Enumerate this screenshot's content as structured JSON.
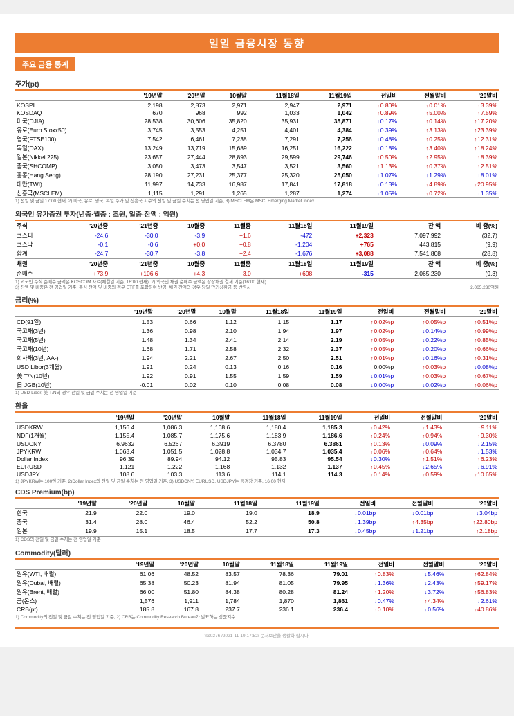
{
  "title": "일일 금융시장 동향",
  "subtitle": "주요 금융 통계",
  "footer": "fsc0276 /2021-11-19 17:52/ 문서보안을 생활화 합시다.",
  "balance_note": "2,065,230억원",
  "sections": [
    {
      "title": "주가(pt)",
      "headers": [
        "",
        "'19년말",
        "'20년말",
        "10월말",
        "11월18일",
        "11월19일",
        "전일비",
        "전월말비",
        "'20말비"
      ],
      "rows": [
        [
          "KOSPI",
          "2,198",
          "2,873",
          "2,971",
          "2,947",
          "2,971",
          "↑0.80%",
          "↑0.01%",
          "↑3.39%"
        ],
        [
          "KOSDAQ",
          "670",
          "968",
          "992",
          "1,033",
          "1,042",
          "↑0.89%",
          "↑5.00%",
          "↑7.59%"
        ],
        [
          "미국(DJIA)",
          "28,538",
          "30,606",
          "35,820",
          "35,931",
          "35,871",
          "↓0.17%",
          "↑0.14%",
          "↑17.20%"
        ],
        [
          "유로(Euro Stoxx50)",
          "3,745",
          "3,553",
          "4,251",
          "4,401",
          "4,384",
          "↓0.39%",
          "↑3.13%",
          "↑23.39%"
        ],
        [
          "영국(FTSE100)",
          "7,542",
          "6,461",
          "7,238",
          "7,291",
          "7,256",
          "↓0.48%",
          "↑0.25%",
          "↑12.31%"
        ],
        [
          "독일(DAX)",
          "13,249",
          "13,719",
          "15,689",
          "16,251",
          "16,222",
          "↓0.18%",
          "↑3.40%",
          "↑18.24%"
        ],
        [
          "일본(Nikkei 225)",
          "23,657",
          "27,444",
          "28,893",
          "29,599",
          "29,746",
          "↑0.50%",
          "↑2.95%",
          "↑8.39%"
        ],
        [
          "중국(SHCOMP)",
          "3,050",
          "3,473",
          "3,547",
          "3,521",
          "3,560",
          "↑1.13%",
          "↑0.37%",
          "↑2.51%"
        ],
        [
          "홍콩(Hang Seng)",
          "28,190",
          "27,231",
          "25,377",
          "25,320",
          "25,050",
          "↓1.07%",
          "↓1.29%",
          "↓8.01%"
        ],
        [
          "대만(TWI)",
          "11,997",
          "14,733",
          "16,987",
          "17,841",
          "17,818",
          "↓0.13%",
          "↑4.89%",
          "↑20.95%"
        ],
        [
          "신흥국(MSCI EM)",
          "1,115",
          "1,291",
          "1,265",
          "1,287",
          "1,274",
          "↓1.05%",
          "↑0.72%",
          "↓1.35%"
        ]
      ],
      "note": "1) 전일 및 금일 17:00 현재, 2) 미국, 유로, 영국, 독일 주가 및 신흥국 지수의 전일 및 금일 수치는 전 영업일 기준, 3) MSCI EM은 MSCI Emerging Market Index"
    },
    {
      "title": "외국인 유가증권 투자(년중·월중 : 조원, 일중·잔액 : 억원)",
      "headers": [
        "주식",
        "'20년중",
        "'21년중",
        "10월중",
        "11월중",
        "11월18일",
        "11월19일",
        "잔 액",
        "비 중(%)"
      ],
      "rows": [
        [
          "코스피",
          "-24.6",
          "-30.0",
          "-3.9",
          "+1.6",
          "-472",
          "+2,323",
          "7,097,992",
          "(32.7)"
        ],
        [
          "코스닥",
          "-0.1",
          "-0.6",
          "+0.0",
          "+0.8",
          "-1,204",
          "+765",
          "443,815",
          "(9.9)"
        ],
        [
          "합계",
          "-24.7",
          "-30.7",
          "-3.8",
          "+2.4",
          "-1,676",
          "+3,088",
          "7,541,808",
          "(28.8)"
        ]
      ],
      "note": ""
    },
    {
      "title": "",
      "headers": [
        "채권",
        "'20년중",
        "'21년중",
        "10월중",
        "11월중",
        "11월18일",
        "11월19일",
        "잔 액",
        "비 중(%)"
      ],
      "rows": [
        [
          "순매수",
          "+73.9",
          "+106.6",
          "+4.3",
          "+3.0",
          "+698",
          "-315",
          "2,065,230",
          "(9.3)"
        ]
      ],
      "note": "1) 외국인 주식 순매수 금액은 KOSCOM 자료(체결일 기준, 16:00 현재), 2) 외국인 채권 순매수 금액은 상장채권 결제 기준(16:00 현재)\n3) 잔액 및 비중은 전 영업일 기준, 주식 잔액 및 비중의 경우 ETF를 포함하여 반영, 채권 잔액의 경우 당일 만기상환금 등 반영시 :"
    },
    {
      "title": "금리(%)",
      "headers": [
        "",
        "'19년말",
        "'20년말",
        "10월말",
        "11월18일",
        "11월19일",
        "전일비",
        "전월말비",
        "'20말비"
      ],
      "rows": [
        [
          "CD(91일)",
          "1.53",
          "0.66",
          "1.12",
          "1.15",
          "1.17",
          "↑0.02%p",
          "↑0.05%p",
          "↑0.51%p"
        ],
        [
          "국고채(3년)",
          "1.36",
          "0.98",
          "2.10",
          "1.94",
          "1.97",
          "↑0.02%p",
          "↓0.14%p",
          "↑0.99%p"
        ],
        [
          "국고채(5년)",
          "1.48",
          "1.34",
          "2.41",
          "2.14",
          "2.19",
          "↑0.05%p",
          "↓0.22%p",
          "↑0.85%p"
        ],
        [
          "국고채(10년)",
          "1.68",
          "1.71",
          "2.58",
          "2.32",
          "2.37",
          "↑0.05%p",
          "↓0.20%p",
          "↑0.66%p"
        ],
        [
          "회사채(3년, AA-)",
          "1.94",
          "2.21",
          "2.67",
          "2.50",
          "2.51",
          "↑0.01%p",
          "↓0.16%p",
          "↑0.31%p"
        ],
        [
          "USD Libor(3개월)",
          "1.91",
          "0.24",
          "0.13",
          "0.16",
          "0.16",
          "0.00%p",
          "↑0.03%p",
          "↓0.08%p"
        ],
        [
          "美 T/N(10년)",
          "1.92",
          "0.91",
          "1.55",
          "1.59",
          "1.59",
          "↓0.01%p",
          "↑0.03%p",
          "↑0.67%p"
        ],
        [
          "日 JGB(10년)",
          "-0.01",
          "0.02",
          "0.10",
          "0.08",
          "0.08",
          "↓0.00%p",
          "↓0.02%p",
          "↑0.06%p"
        ]
      ],
      "note": "1) USD Libor, 美 T/N의 경우 전일 및 금일 수치는 전 영업일 기준"
    },
    {
      "title": "환율",
      "headers": [
        "",
        "'19년말",
        "'20년말",
        "10월말",
        "11월18일",
        "11월19일",
        "전일비",
        "전월말비",
        "'20말비"
      ],
      "rows": [
        [
          "USDKRW",
          "1,156.4",
          "1,086.3",
          "1,168.6",
          "1,180.4",
          "1,185.3",
          "↑0.42%",
          "↑1.43%",
          "↑9.11%"
        ],
        [
          " NDF(1개월)",
          "1,155.4",
          "1,085.7",
          "1,175.6",
          "1,183.9",
          "1,186.6",
          "↑0.24%",
          "↑0.94%",
          "↑9.30%"
        ],
        [
          "USDCNY",
          "6.9632",
          "6.5267",
          "6.3919",
          "6.3780",
          "6.3861",
          "↑0.13%",
          "↓0.09%",
          "↓2.15%"
        ],
        [
          "JPYKRW",
          "1,063.4",
          "1,051.5",
          "1,028.8",
          "1,034.7",
          "1,035.4",
          "↑0.06%",
          "↑0.64%",
          "↓1.53%"
        ],
        [
          "Dollar Index",
          "96.39",
          "89.94",
          "94.12",
          "95.83",
          "95.54",
          "↓0.30%",
          "↑1.51%",
          "↑6.23%"
        ],
        [
          "EURUSD",
          "1.121",
          "1.222",
          "1.168",
          "1.132",
          "1.137",
          "↑0.45%",
          "↓2.65%",
          "↓6.91%"
        ],
        [
          "USDJPY",
          "108.6",
          "103.3",
          "113.6",
          "114.1",
          "114.3",
          "↑0.14%",
          "↑0.59%",
          "↑10.65%"
        ]
      ],
      "note": "1) JPYKRW는 100엔 기준, 2)Dollar Index의 전일 및 금일 수치는 전 영업일 기준, 3) USDCNY, EURUSD, USDJPY는 동경장 기준, 16:00 현재"
    },
    {
      "title": "CDS Premium(bp)",
      "headers": [
        "",
        "'19년말",
        "'20년말",
        "10월말",
        "11월18일",
        "11월19일",
        "전일비",
        "전월말비",
        "'20말비"
      ],
      "rows": [
        [
          "한국",
          "21.9",
          "22.0",
          "19.0",
          "19.0",
          "18.9",
          "↓0.01bp",
          "↓0.01bp",
          "↓3.04bp"
        ],
        [
          "중국",
          "31.4",
          "28.0",
          "46.4",
          "52.2",
          "50.8",
          "↓1.39bp",
          "↑4.35bp",
          "↑22.80bp"
        ],
        [
          "일본",
          "19.9",
          "15.1",
          "18.5",
          "17.7",
          "17.3",
          "↓0.45bp",
          "↓1.21bp",
          "↑2.18bp"
        ]
      ],
      "note": "1) CDS의 전일 및 금일 수치는 전 영업일 기준"
    },
    {
      "title": "Commodity(달러)",
      "headers": [
        "",
        "'19년말",
        "'20년말",
        "10월말",
        "11월18일",
        "11월19일",
        "전일비",
        "전월말비",
        "'20말비"
      ],
      "rows": [
        [
          "원유(WTI, 배럴)",
          "61.06",
          "48.52",
          "83.57",
          "78.36",
          "79.01",
          "↑0.83%",
          "↓5.46%",
          "↑62.84%"
        ],
        [
          "원유(Dubai, 배럴)",
          "65.38",
          "50.23",
          "81.94",
          "81.05",
          "79.95",
          "↓1.36%",
          "↓2.43%",
          "↑59.17%"
        ],
        [
          "원유(Brent, 배럴)",
          "66.00",
          "51.80",
          "84.38",
          "80.28",
          "81.24",
          "↑1.20%",
          "↓3.72%",
          "↑56.83%"
        ],
        [
          "금(온스)",
          "1,576",
          "1,911",
          "1,784",
          "1,870",
          "1,861",
          "↓0.47%",
          "↑4.34%",
          "↓2.61%"
        ],
        [
          "CRB(pt)",
          "185.8",
          "167.8",
          "237.7",
          "236.1",
          "236.4",
          "↑0.10%",
          "↓0.56%",
          "↑40.86%"
        ]
      ],
      "note": "1) Commodity의 전일 및 금일 수치는 전 영업일 기준, 2) CRB는 Commodity Research Bureau가 발표하는 상품지수"
    }
  ]
}
